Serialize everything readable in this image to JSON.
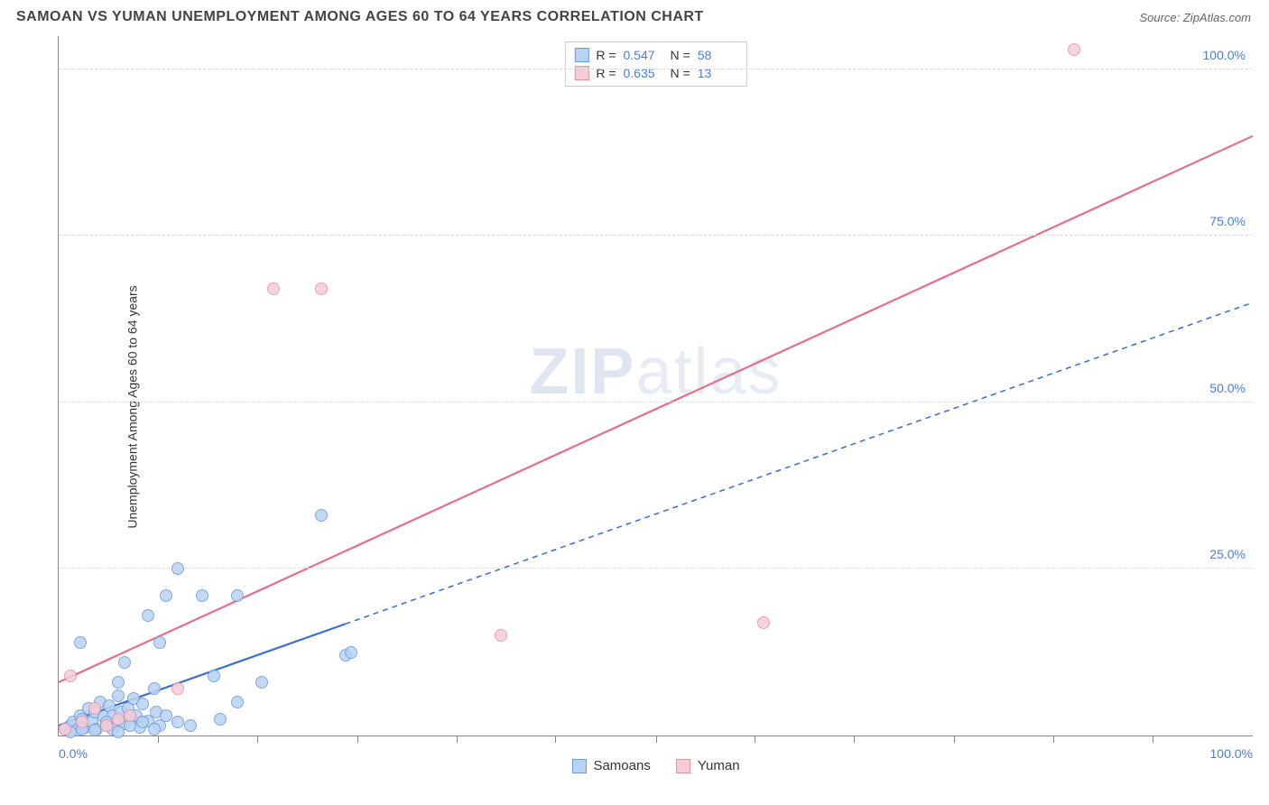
{
  "title": "SAMOAN VS YUMAN UNEMPLOYMENT AMONG AGES 60 TO 64 YEARS CORRELATION CHART",
  "source": "Source: ZipAtlas.com",
  "ylabel": "Unemployment Among Ages 60 to 64 years",
  "watermark_a": "ZIP",
  "watermark_b": "atlas",
  "chart": {
    "type": "scatter",
    "xlim": [
      0,
      100
    ],
    "ylim": [
      0,
      105
    ],
    "xtick_left": "0.0%",
    "xtick_right": "100.0%",
    "yticks": [
      {
        "v": 25,
        "label": "25.0%"
      },
      {
        "v": 50,
        "label": "50.0%"
      },
      {
        "v": 75,
        "label": "75.0%"
      },
      {
        "v": 100,
        "label": "100.0%"
      }
    ],
    "xticks_minor": [
      8.3,
      16.6,
      25,
      33.3,
      41.6,
      50,
      58.3,
      66.6,
      75,
      83.3,
      91.6
    ],
    "grid_color": "#dddddd",
    "axis_color": "#888888",
    "background_color": "#ffffff",
    "tick_label_color": "#4a7fd8",
    "point_radius": 7,
    "series": [
      {
        "name": "Samoans",
        "fill": "#b9d2f2",
        "stroke": "#6b9be0",
        "trend": {
          "x1": 0,
          "y1": 1.5,
          "x2": 100,
          "y2": 65,
          "dash_after_x": 24,
          "color": "#3b6fd1",
          "width": 2.2
        },
        "points": [
          [
            0.5,
            1
          ],
          [
            1,
            1.5
          ],
          [
            1.2,
            2
          ],
          [
            1.5,
            0.8
          ],
          [
            1.8,
            3
          ],
          [
            2,
            2.5
          ],
          [
            2.2,
            1.2
          ],
          [
            2.5,
            4
          ],
          [
            2.8,
            2
          ],
          [
            3,
            3.5
          ],
          [
            3.2,
            1
          ],
          [
            3.5,
            5
          ],
          [
            3.8,
            2.8
          ],
          [
            4,
            1.5
          ],
          [
            4.2,
            4.5
          ],
          [
            4.5,
            3
          ],
          [
            4.8,
            2
          ],
          [
            5,
            6
          ],
          [
            5.2,
            3.5
          ],
          [
            5.5,
            1.8
          ],
          [
            5.8,
            4
          ],
          [
            6,
            2.5
          ],
          [
            6.3,
            5.5
          ],
          [
            6.5,
            3
          ],
          [
            6.8,
            1.2
          ],
          [
            7,
            4.8
          ],
          [
            7.5,
            2.2
          ],
          [
            8,
            7
          ],
          [
            8.2,
            3.5
          ],
          [
            8.5,
            1.5
          ],
          [
            1.8,
            14
          ],
          [
            5,
            8
          ],
          [
            5.5,
            11
          ],
          [
            7.5,
            18
          ],
          [
            8.5,
            14
          ],
          [
            9,
            21
          ],
          [
            10,
            25
          ],
          [
            12,
            21
          ],
          [
            13,
            9
          ],
          [
            13.5,
            2.5
          ],
          [
            15,
            5
          ],
          [
            15,
            21
          ],
          [
            17,
            8
          ],
          [
            22,
            33
          ],
          [
            24,
            12
          ],
          [
            24.5,
            12.5
          ],
          [
            1,
            0.5
          ],
          [
            2,
            1
          ],
          [
            3,
            0.8
          ],
          [
            4,
            2
          ],
          [
            4.5,
            1
          ],
          [
            5,
            0.5
          ],
          [
            6,
            1.5
          ],
          [
            7,
            2
          ],
          [
            8,
            1
          ],
          [
            9,
            3
          ],
          [
            10,
            2
          ],
          [
            11,
            1.5
          ]
        ]
      },
      {
        "name": "Yuman",
        "fill": "#f6cdd7",
        "stroke": "#e98fa5",
        "trend": {
          "x1": 0,
          "y1": 8,
          "x2": 100,
          "y2": 90,
          "dash_after_x": 100,
          "color": "#e36f8c",
          "width": 2.2
        },
        "points": [
          [
            0.5,
            1
          ],
          [
            1,
            9
          ],
          [
            2,
            2
          ],
          [
            3,
            4
          ],
          [
            4,
            1.5
          ],
          [
            5,
            2.5
          ],
          [
            6,
            3
          ],
          [
            10,
            7
          ],
          [
            18,
            67
          ],
          [
            22,
            67
          ],
          [
            37,
            15
          ],
          [
            59,
            17
          ],
          [
            85,
            103
          ]
        ]
      }
    ],
    "stats": [
      {
        "swatch_fill": "#b9d2f2",
        "swatch_stroke": "#6b9be0",
        "r": "0.547",
        "n": "58"
      },
      {
        "swatch_fill": "#f6cdd7",
        "swatch_stroke": "#e98fa5",
        "r": "0.635",
        "n": "13"
      }
    ],
    "stat_label_r": "R =",
    "stat_label_n": "N =",
    "legend": [
      {
        "label": "Samoans",
        "fill": "#b9d2f2",
        "stroke": "#6b9be0"
      },
      {
        "label": "Yuman",
        "fill": "#f6cdd7",
        "stroke": "#e98fa5"
      }
    ]
  }
}
